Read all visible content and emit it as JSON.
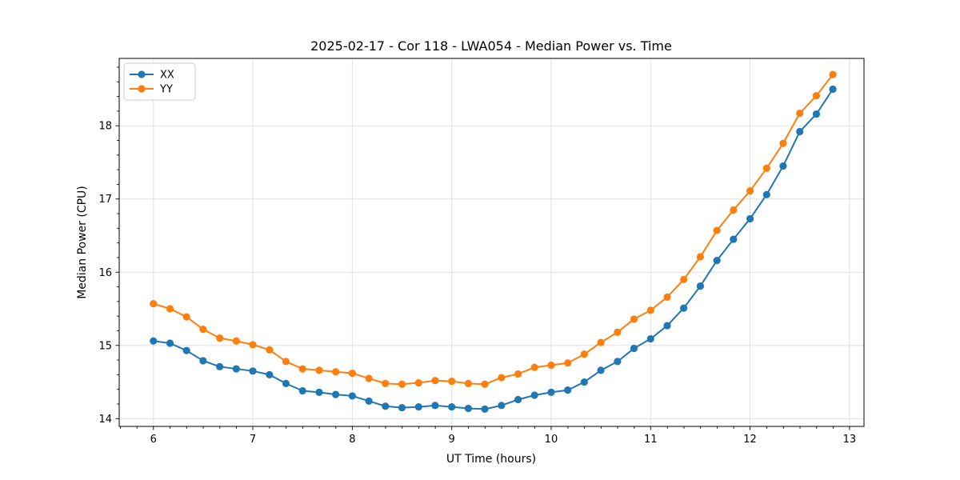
{
  "chart_data": {
    "type": "line",
    "title": "2025-02-17 - Cor 118 - LWA054 - Median Power vs. Time",
    "xlabel": "UT Time (hours)",
    "ylabel": "Median Power (CPU)",
    "xlim": [
      5.656,
      13.146
    ],
    "ylim": [
      13.894,
      18.92
    ],
    "x_major_ticks": [
      6,
      7,
      8,
      9,
      10,
      11,
      12,
      13
    ],
    "y_major_ticks": [
      14,
      15,
      16,
      17,
      18
    ],
    "x_minor_step": 0.1667,
    "y_minor_step": 0.2,
    "grid": "major",
    "legend_position": "upper-left",
    "x": [
      6.0,
      6.167,
      6.333,
      6.5,
      6.667,
      6.833,
      7.0,
      7.167,
      7.333,
      7.5,
      7.667,
      7.833,
      8.0,
      8.167,
      8.333,
      8.5,
      8.667,
      8.833,
      9.0,
      9.167,
      9.333,
      9.5,
      9.667,
      9.833,
      10.0,
      10.167,
      10.333,
      10.5,
      10.667,
      10.833,
      11.0,
      11.167,
      11.333,
      11.5,
      11.667,
      11.833,
      12.0,
      12.167,
      12.333,
      12.5,
      12.667,
      12.833
    ],
    "series": [
      {
        "name": "XX",
        "color": "#1f77b4",
        "values": [
          15.06,
          15.03,
          14.93,
          14.79,
          14.71,
          14.68,
          14.65,
          14.6,
          14.48,
          14.38,
          14.36,
          14.33,
          14.31,
          14.24,
          14.17,
          14.15,
          14.16,
          14.18,
          14.16,
          14.14,
          14.13,
          14.18,
          14.26,
          14.32,
          14.36,
          14.39,
          14.5,
          14.66,
          14.78,
          14.96,
          15.09,
          15.27,
          15.51,
          15.81,
          16.16,
          16.45,
          16.73,
          17.06,
          17.45,
          17.92,
          18.16,
          18.5
        ]
      },
      {
        "name": "YY",
        "color": "#ff7f0e",
        "values": [
          15.57,
          15.5,
          15.39,
          15.22,
          15.1,
          15.06,
          15.01,
          14.94,
          14.78,
          14.68,
          14.66,
          14.64,
          14.62,
          14.55,
          14.48,
          14.47,
          14.49,
          14.52,
          14.51,
          14.48,
          14.47,
          14.56,
          14.61,
          14.7,
          14.73,
          14.76,
          14.88,
          15.04,
          15.18,
          15.36,
          15.48,
          15.66,
          15.9,
          16.21,
          16.57,
          16.85,
          17.11,
          17.42,
          17.76,
          18.17,
          18.41,
          18.7
        ]
      }
    ]
  },
  "colors": {
    "background": "#ffffff",
    "grid": "#e0e0e0",
    "spine": "#000000",
    "legend_border": "#cccccc"
  }
}
